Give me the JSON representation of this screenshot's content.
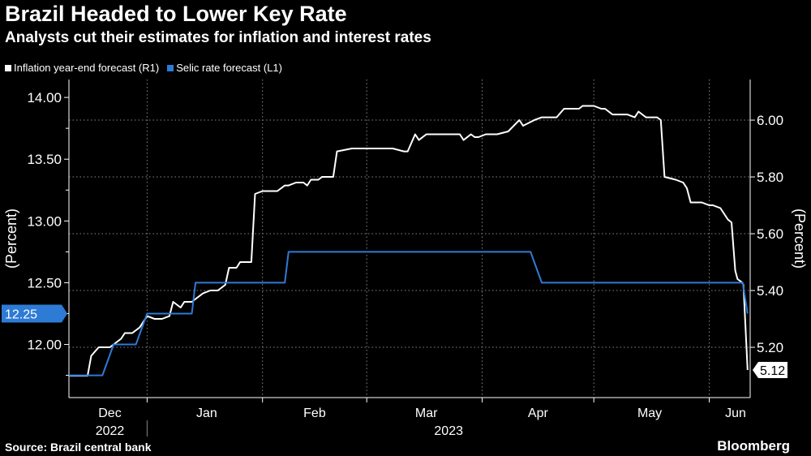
{
  "chart_data": {
    "type": "line",
    "title": "Brazil Headed to Lower Key Rate",
    "subtitle": "Analysts cut their estimates for inflation and interest rates",
    "x_unit": "days since 2023-01-01",
    "xlim": [
      -21,
      162
    ],
    "x_ticks": [
      {
        "label": "Dec",
        "at": -10
      },
      {
        "label": "Jan",
        "at": 16
      },
      {
        "label": "Feb",
        "at": 45
      },
      {
        "label": "Mar",
        "at": 75
      },
      {
        "label": "Apr",
        "at": 105
      },
      {
        "label": "May",
        "at": 135
      },
      {
        "label": "Jun",
        "at": 162
      }
    ],
    "month_boundaries": [
      0,
      31,
      59,
      90,
      120,
      151
    ],
    "year_labels": [
      {
        "label": "2022",
        "at": -10
      },
      {
        "label": "2023",
        "at": 81
      }
    ],
    "left_axis": {
      "label": "(Percent)",
      "ylim": [
        11.57,
        14.145
      ],
      "ticks": [
        "12.00",
        "12.50",
        "13.00",
        "13.50",
        "14.00"
      ],
      "minor": [
        11.75,
        12.25,
        12.75,
        13.25,
        13.75
      ]
    },
    "right_axis": {
      "label": "(Percent)",
      "ylim": [
        5.023,
        6.143
      ],
      "ticks": [
        "5.20",
        "5.40",
        "5.60",
        "5.80",
        "6.00"
      ]
    },
    "grid": true,
    "legend_position": "top-left",
    "series": [
      {
        "name": "Inflation year-end forecast (R1)",
        "axis": "right",
        "color": "#ffffff",
        "last_value_label": "5.12",
        "points": [
          [
            -21,
            5.1
          ],
          [
            -16,
            5.1
          ],
          [
            -15,
            5.17
          ],
          [
            -13,
            5.2
          ],
          [
            -10,
            5.2
          ],
          [
            -7,
            5.23
          ],
          [
            -6,
            5.25
          ],
          [
            -4,
            5.25
          ],
          [
            -2,
            5.27
          ],
          [
            0,
            5.31
          ],
          [
            2,
            5.3
          ],
          [
            4,
            5.3
          ],
          [
            6,
            5.31
          ],
          [
            7,
            5.36
          ],
          [
            9,
            5.34
          ],
          [
            10,
            5.36
          ],
          [
            12,
            5.36
          ],
          [
            15,
            5.39
          ],
          [
            17,
            5.4
          ],
          [
            19,
            5.4
          ],
          [
            21,
            5.42
          ],
          [
            22,
            5.48
          ],
          [
            24,
            5.48
          ],
          [
            25,
            5.5
          ],
          [
            28,
            5.5
          ],
          [
            29,
            5.74
          ],
          [
            31,
            5.75
          ],
          [
            35,
            5.75
          ],
          [
            37,
            5.77
          ],
          [
            38,
            5.77
          ],
          [
            40,
            5.78
          ],
          [
            42,
            5.78
          ],
          [
            43,
            5.77
          ],
          [
            44,
            5.79
          ],
          [
            46,
            5.79
          ],
          [
            47,
            5.8
          ],
          [
            50,
            5.8
          ],
          [
            51,
            5.89
          ],
          [
            55,
            5.9
          ],
          [
            62,
            5.9
          ],
          [
            66,
            5.9
          ],
          [
            69,
            5.89
          ],
          [
            70,
            5.89
          ],
          [
            72,
            5.95
          ],
          [
            73,
            5.93
          ],
          [
            75,
            5.95
          ],
          [
            84,
            5.95
          ],
          [
            85,
            5.93
          ],
          [
            87,
            5.95
          ],
          [
            88,
            5.94
          ],
          [
            89,
            5.94
          ],
          [
            91,
            5.95
          ],
          [
            94,
            5.95
          ],
          [
            97,
            5.96
          ],
          [
            100,
            6.0
          ],
          [
            101,
            5.98
          ],
          [
            104,
            6.0
          ],
          [
            106,
            6.01
          ],
          [
            107,
            6.01
          ],
          [
            110,
            6.01
          ],
          [
            112,
            6.04
          ],
          [
            116,
            6.04
          ],
          [
            117,
            6.05
          ],
          [
            120,
            6.05
          ],
          [
            122,
            6.04
          ],
          [
            123,
            6.04
          ],
          [
            125,
            6.02
          ],
          [
            129,
            6.02
          ],
          [
            131,
            6.01
          ],
          [
            132,
            6.03
          ],
          [
            134,
            6.01
          ],
          [
            137,
            6.01
          ],
          [
            138,
            6.0
          ],
          [
            139,
            5.8
          ],
          [
            142,
            5.79
          ],
          [
            144,
            5.78
          ],
          [
            145,
            5.76
          ],
          [
            146,
            5.71
          ],
          [
            149,
            5.71
          ],
          [
            151,
            5.7
          ],
          [
            152,
            5.7
          ],
          [
            154,
            5.69
          ],
          [
            156,
            5.65
          ],
          [
            157,
            5.64
          ],
          [
            158,
            5.47
          ],
          [
            158.6,
            5.44
          ],
          [
            159.7,
            5.43
          ],
          [
            160.2,
            5.42
          ],
          [
            161.3,
            5.12
          ]
        ]
      },
      {
        "name": "Selic rate forecast (L1)",
        "axis": "left",
        "color": "#2e7bd6",
        "last_value_label": "12.25",
        "points": [
          [
            -21,
            11.75
          ],
          [
            -12,
            11.75
          ],
          [
            -9,
            12.0
          ],
          [
            -3,
            12.0
          ],
          [
            0,
            12.25
          ],
          [
            12,
            12.25
          ],
          [
            13,
            12.5
          ],
          [
            37,
            12.5
          ],
          [
            38,
            12.75
          ],
          [
            103,
            12.75
          ],
          [
            106,
            12.5
          ],
          [
            160,
            12.5
          ],
          [
            161.3,
            12.25
          ]
        ]
      }
    ]
  },
  "footer": {
    "source": "Source: Brazil central bank",
    "brand": "Bloomberg"
  }
}
